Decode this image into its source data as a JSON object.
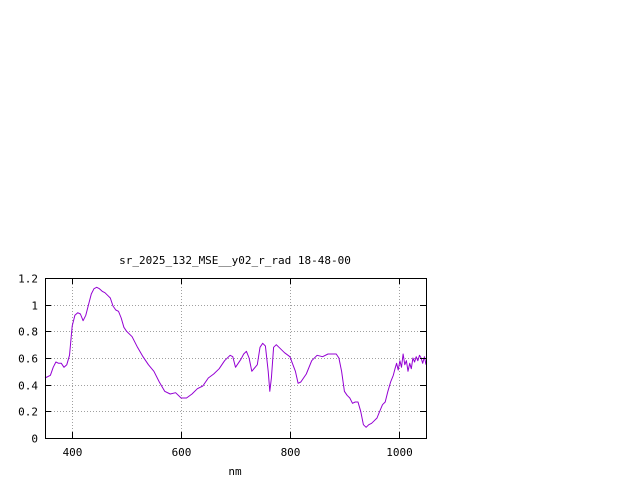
{
  "chart_data": {
    "type": "line",
    "title": "sr_2025_132_MSE__y02_r_rad 18-48-00",
    "xlabel": "nm",
    "ylabel": "",
    "xlim": [
      350,
      1050
    ],
    "ylim": [
      0,
      1.2
    ],
    "xticks": [
      400,
      600,
      800,
      1000
    ],
    "xtick_labels": [
      "400",
      "600",
      "800",
      "1000"
    ],
    "yticks": [
      0,
      0.2,
      0.4,
      0.6,
      0.8,
      1.0,
      1.2
    ],
    "ytick_labels": [
      "0",
      "0.2",
      "0.4",
      "0.6",
      "0.8",
      "1",
      "1.2"
    ],
    "grid": true,
    "legend": "none",
    "line_color": "#9400d3",
    "series": [
      {
        "x": [
          350,
          360,
          365,
          370,
          375,
          380,
          385,
          390,
          395,
          400,
          405,
          410,
          415,
          420,
          425,
          430,
          435,
          440,
          445,
          450,
          455,
          460,
          465,
          470,
          475,
          480,
          485,
          490,
          495,
          500,
          510,
          520,
          530,
          540,
          550,
          560,
          570,
          580,
          590,
          600,
          610,
          620,
          630,
          640,
          650,
          660,
          670,
          680,
          690,
          695,
          700,
          710,
          715,
          720,
          725,
          730,
          740,
          745,
          750,
          755,
          760,
          763,
          766,
          770,
          775,
          780,
          790,
          800,
          810,
          815,
          820,
          830,
          840,
          850,
          860,
          870,
          880,
          885,
          890,
          895,
          900,
          905,
          910,
          915,
          920,
          925,
          930,
          935,
          940,
          945,
          950,
          955,
          960,
          965,
          970,
          975,
          980,
          985,
          990,
          993,
          996,
          999,
          1002,
          1005,
          1008,
          1011,
          1014,
          1017,
          1020,
          1023,
          1026,
          1029,
          1032,
          1035,
          1038,
          1041,
          1044,
          1047,
          1050
        ],
        "y": [
          0.45,
          0.47,
          0.53,
          0.57,
          0.56,
          0.56,
          0.53,
          0.55,
          0.62,
          0.84,
          0.92,
          0.94,
          0.93,
          0.88,
          0.92,
          1.0,
          1.08,
          1.12,
          1.13,
          1.12,
          1.1,
          1.09,
          1.07,
          1.05,
          0.99,
          0.96,
          0.95,
          0.9,
          0.83,
          0.8,
          0.76,
          0.68,
          0.61,
          0.55,
          0.5,
          0.42,
          0.35,
          0.33,
          0.34,
          0.3,
          0.3,
          0.33,
          0.37,
          0.39,
          0.45,
          0.48,
          0.52,
          0.58,
          0.62,
          0.61,
          0.53,
          0.59,
          0.63,
          0.65,
          0.6,
          0.5,
          0.55,
          0.68,
          0.71,
          0.69,
          0.5,
          0.35,
          0.45,
          0.68,
          0.7,
          0.68,
          0.64,
          0.61,
          0.5,
          0.41,
          0.42,
          0.48,
          0.58,
          0.62,
          0.61,
          0.63,
          0.63,
          0.63,
          0.6,
          0.5,
          0.35,
          0.32,
          0.3,
          0.26,
          0.27,
          0.27,
          0.2,
          0.1,
          0.08,
          0.1,
          0.11,
          0.13,
          0.15,
          0.2,
          0.25,
          0.27,
          0.35,
          0.42,
          0.47,
          0.52,
          0.56,
          0.51,
          0.58,
          0.53,
          0.63,
          0.55,
          0.58,
          0.5,
          0.56,
          0.52,
          0.6,
          0.57,
          0.61,
          0.58,
          0.62,
          0.6,
          0.56,
          0.61,
          0.55
        ]
      }
    ]
  }
}
